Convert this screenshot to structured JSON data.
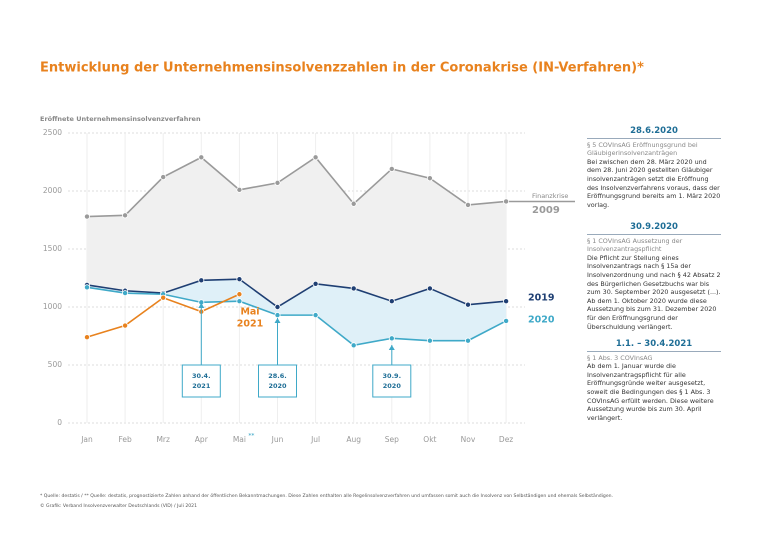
{
  "chart_data": {
    "type": "line",
    "title": "Entwicklung der Unternehmensinsolvenzzahlen in der Coronakrise (IN-Verfahren)*",
    "y_label": "Eröffnete Unternehmensinsolvenzverfahren",
    "categories": [
      "Jan",
      "Feb",
      "Mrz",
      "Apr",
      "Mai",
      "Jun",
      "Jul",
      "Aug",
      "Sep",
      "Okt",
      "Nov",
      "Dez"
    ],
    "category_note": "**",
    "ylim": [
      0,
      2500
    ],
    "yticks": [
      0,
      500,
      1000,
      1500,
      2000,
      2500
    ],
    "grid": true,
    "series": [
      {
        "name": "2009",
        "color": "#9a9a9a",
        "values": [
          1780,
          1790,
          2120,
          2290,
          2010,
          2070,
          2290,
          1890,
          2190,
          2110,
          1880,
          1910
        ]
      },
      {
        "name": "2019",
        "color": "#1f3f73",
        "values": [
          1190,
          1140,
          1120,
          1230,
          1240,
          1000,
          1200,
          1160,
          1050,
          1160,
          1020,
          1050
        ]
      },
      {
        "name": "2020",
        "color": "#3fa9c8",
        "values": [
          1170,
          1120,
          1110,
          1040,
          1050,
          930,
          930,
          670,
          730,
          710,
          710,
          880
        ]
      },
      {
        "name": "2021",
        "color": "#e8821e",
        "values": [
          740,
          840,
          1080,
          960,
          1110,
          null,
          null,
          null,
          null,
          null,
          null,
          null
        ]
      }
    ],
    "annotations": {
      "finanzkrise": "Finanzkrise",
      "mai": "Mai"
    },
    "callouts": [
      [
        "30.4.",
        "2021"
      ],
      [
        "28.6.",
        "2020"
      ],
      [
        "30.9.",
        "2020"
      ]
    ],
    "panel": [
      {
        "heading": "28.6.2020",
        "subheading": "§ 5 COVInsAG Eröffnungsgrund bei Gläubigerinsolvenzanträgen",
        "body": "Bei zwischen dem 28. März 2020 und dem 28. Juni 2020 gestellten Gläubiger insolvenzanträgen setzt die Eröffnung des Insolvenzverfahrens voraus, dass der Eröffnungsgrund bereits am 1. März 2020 vorlag."
      },
      {
        "heading": "30.9.2020",
        "subheading": "§ 1 COVInsAG Aussetzung der Insolvenzantragspflicht",
        "body": "Die Pflicht zur Stellung eines Insolvenzantrags nach § 15a der Insolvenzordnung und nach § 42 Absatz 2 des Bürgerlichen Gesetzbuchs war bis zum 30. September 2020 ausgesetzt (...). Ab dem 1. Oktober 2020 wurde diese Aussetzung bis zum 31. Dezember 2020 für den Eröffnungsgrund der Überschuldung verlängert."
      },
      {
        "heading": "1.1. – 30.4.2021",
        "subheading": "§ 1 Abs. 3 COVInsAG",
        "body": "Ab dem 1. Januar wurde die Insolvenzantragspflicht für alle Eröffnungsgründe weiter ausgesetzt, soweit die Bedingungen des § 1 Abs. 3 COVInsAG erfüllt werden. Diese weitere Aussetzung wurde bis zum 30. April verlängert."
      }
    ],
    "footnote": "* Quelle: destatis / ** Quelle: destatis, prognostizierte Zahlen anhand der öffentlichen Bekanntmachungen. Diese Zahlen enthalten alle Regelinsolvenzverfahren und umfassen somit auch die Insolvenz von Selbständigen und ehemals Selbständigen.",
    "credit": "© Grafik: Verband Insolvenzverwalter Deutschlands (VID) / Juli 2021"
  }
}
